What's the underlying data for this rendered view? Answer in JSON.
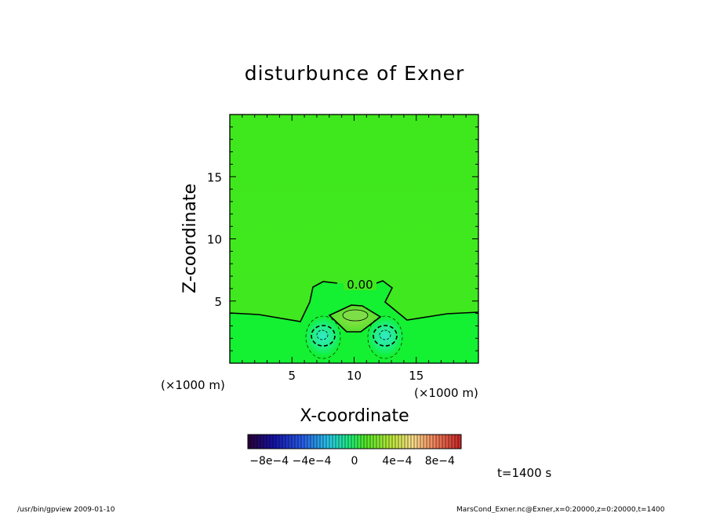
{
  "chart_data": {
    "type": "heatmap",
    "title": "disturbunce of Exner",
    "xlabel": "X-coordinate",
    "ylabel": "Z-coordinate",
    "x_unit": "(×1000 m)",
    "y_unit": "(×1000 m)",
    "xlim": [
      0,
      20
    ],
    "ylim": [
      0,
      20
    ],
    "x_ticks": [
      5,
      10,
      15
    ],
    "y_ticks": [
      5,
      10,
      15
    ],
    "contour_label": "0.00",
    "colorbar": {
      "labels": [
        "−8e−4",
        "−4e−4",
        "0",
        "4e−4",
        "8e−4"
      ],
      "values": [
        -0.0008,
        -0.0004,
        0,
        0.0004,
        0.0008
      ],
      "range": [
        -0.001,
        0.001
      ]
    },
    "field": {
      "background_value": 0.0001,
      "features": [
        {
          "kind": "max",
          "x": 10,
          "z": 3.7,
          "value": 0.0002
        },
        {
          "kind": "min",
          "x": 7.6,
          "z": 2.2,
          "value": -0.0003
        },
        {
          "kind": "min",
          "x": 12.4,
          "z": 2.2,
          "value": -0.0003
        }
      ]
    },
    "time_label": "t=1400 s"
  },
  "footer": {
    "left": "/usr/bin/gpview   2009-01-10",
    "right": "MarsCond_Exner.nc@Exner,x=0:20000,z=0:20000,t=1400"
  }
}
